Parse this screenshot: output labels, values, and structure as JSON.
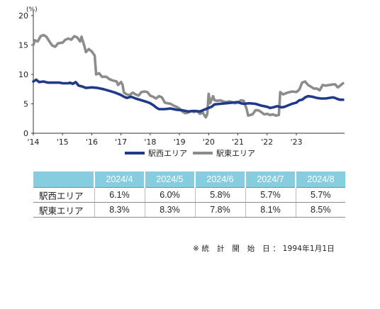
{
  "chart_data": {
    "type": "line",
    "y_unit": "(%)",
    "ylim": [
      0,
      20
    ],
    "y_ticks": [
      "0",
      "5",
      "10",
      "15",
      "20"
    ],
    "x_ticks": [
      "'14",
      "'15",
      "'16",
      "'17",
      "'18",
      "'19",
      "'20",
      "'21",
      "'22",
      "'23"
    ],
    "x_range": [
      2014.0,
      2024.65
    ],
    "grid": false,
    "legend_position": "bottom",
    "series": [
      {
        "name": "駅西エリア",
        "color": "#1f3a8a",
        "points": [
          [
            2014.0,
            8.8
          ],
          [
            2014.1,
            9.1
          ],
          [
            2014.2,
            8.7
          ],
          [
            2014.35,
            8.8
          ],
          [
            2014.5,
            8.6
          ],
          [
            2014.7,
            8.6
          ],
          [
            2014.9,
            8.6
          ],
          [
            2015.0,
            8.5
          ],
          [
            2015.2,
            8.5
          ],
          [
            2015.25,
            8.6
          ],
          [
            2015.35,
            8.4
          ],
          [
            2015.45,
            8.7
          ],
          [
            2015.55,
            8.1
          ],
          [
            2015.7,
            7.9
          ],
          [
            2015.8,
            7.7
          ],
          [
            2016.0,
            7.8
          ],
          [
            2016.2,
            7.7
          ],
          [
            2016.4,
            7.5
          ],
          [
            2016.6,
            7.2
          ],
          [
            2016.8,
            6.9
          ],
          [
            2017.0,
            6.5
          ],
          [
            2017.1,
            6.2
          ],
          [
            2017.2,
            6.0
          ],
          [
            2017.35,
            6.2
          ],
          [
            2017.5,
            5.9
          ],
          [
            2017.7,
            5.6
          ],
          [
            2017.9,
            5.3
          ],
          [
            2018.0,
            5.1
          ],
          [
            2018.1,
            4.8
          ],
          [
            2018.2,
            4.4
          ],
          [
            2018.3,
            4.1
          ],
          [
            2018.5,
            4.1
          ],
          [
            2018.7,
            4.2
          ],
          [
            2018.9,
            4.0
          ],
          [
            2019.1,
            3.9
          ],
          [
            2019.3,
            3.7
          ],
          [
            2019.5,
            3.8
          ],
          [
            2019.7,
            3.7
          ],
          [
            2019.85,
            4.0
          ],
          [
            2019.95,
            4.2
          ],
          [
            2020.1,
            4.5
          ],
          [
            2020.2,
            4.9
          ],
          [
            2020.4,
            5.0
          ],
          [
            2020.6,
            5.1
          ],
          [
            2020.8,
            5.2
          ],
          [
            2021.0,
            5.3
          ],
          [
            2021.1,
            5.1
          ],
          [
            2021.2,
            5.0
          ],
          [
            2021.4,
            5.1
          ],
          [
            2021.6,
            5.0
          ],
          [
            2021.8,
            4.7
          ],
          [
            2021.9,
            4.6
          ],
          [
            2022.0,
            4.5
          ],
          [
            2022.1,
            4.3
          ],
          [
            2022.2,
            4.4
          ],
          [
            2022.35,
            4.6
          ],
          [
            2022.5,
            4.4
          ],
          [
            2022.6,
            4.5
          ],
          [
            2022.7,
            4.7
          ],
          [
            2022.85,
            5.0
          ],
          [
            2023.0,
            5.2
          ],
          [
            2023.1,
            5.6
          ],
          [
            2023.2,
            5.7
          ],
          [
            2023.3,
            6.1
          ],
          [
            2023.4,
            6.3
          ],
          [
            2023.55,
            6.2
          ],
          [
            2023.7,
            6.0
          ],
          [
            2023.85,
            5.9
          ],
          [
            2024.0,
            5.9
          ],
          [
            2024.25,
            6.1
          ],
          [
            2024.33,
            6.0
          ],
          [
            2024.42,
            5.8
          ],
          [
            2024.5,
            5.7
          ],
          [
            2024.6,
            5.7
          ]
        ]
      },
      {
        "name": "駅東エリア",
        "color": "#8c8c8c",
        "points": [
          [
            2014.0,
            15.0
          ],
          [
            2014.05,
            15.8
          ],
          [
            2014.15,
            15.6
          ],
          [
            2014.25,
            16.5
          ],
          [
            2014.35,
            16.7
          ],
          [
            2014.45,
            16.4
          ],
          [
            2014.55,
            15.6
          ],
          [
            2014.65,
            14.9
          ],
          [
            2014.75,
            14.7
          ],
          [
            2014.85,
            15.3
          ],
          [
            2015.0,
            15.4
          ],
          [
            2015.1,
            15.9
          ],
          [
            2015.2,
            16.1
          ],
          [
            2015.3,
            15.9
          ],
          [
            2015.4,
            16.5
          ],
          [
            2015.5,
            16.3
          ],
          [
            2015.6,
            15.6
          ],
          [
            2015.65,
            16.4
          ],
          [
            2015.75,
            14.8
          ],
          [
            2015.8,
            13.8
          ],
          [
            2015.9,
            14.3
          ],
          [
            2016.0,
            13.9
          ],
          [
            2016.1,
            13.2
          ],
          [
            2016.15,
            10.0
          ],
          [
            2016.25,
            10.2
          ],
          [
            2016.35,
            9.6
          ],
          [
            2016.5,
            9.6
          ],
          [
            2016.6,
            9.2
          ],
          [
            2016.7,
            9.0
          ],
          [
            2016.85,
            8.8
          ],
          [
            2016.9,
            8.2
          ],
          [
            2017.0,
            8.7
          ],
          [
            2017.05,
            8.3
          ],
          [
            2017.1,
            6.9
          ],
          [
            2017.2,
            6.6
          ],
          [
            2017.3,
            6.5
          ],
          [
            2017.4,
            6.9
          ],
          [
            2017.5,
            6.6
          ],
          [
            2017.6,
            6.4
          ],
          [
            2017.7,
            7.0
          ],
          [
            2017.8,
            7.1
          ],
          [
            2017.9,
            7.0
          ],
          [
            2018.0,
            6.4
          ],
          [
            2018.1,
            6.2
          ],
          [
            2018.2,
            5.9
          ],
          [
            2018.3,
            6.3
          ],
          [
            2018.4,
            6.1
          ],
          [
            2018.5,
            5.2
          ],
          [
            2018.6,
            5.1
          ],
          [
            2018.7,
            5.0
          ],
          [
            2018.8,
            4.7
          ],
          [
            2018.9,
            4.5
          ],
          [
            2019.0,
            4.2
          ],
          [
            2019.1,
            3.7
          ],
          [
            2019.2,
            3.4
          ],
          [
            2019.3,
            3.5
          ],
          [
            2019.4,
            3.8
          ],
          [
            2019.5,
            3.6
          ],
          [
            2019.6,
            3.8
          ],
          [
            2019.7,
            3.3
          ],
          [
            2019.8,
            3.5
          ],
          [
            2019.9,
            2.7
          ],
          [
            2019.95,
            3.2
          ],
          [
            2020.0,
            6.7
          ],
          [
            2020.05,
            5.1
          ],
          [
            2020.15,
            6.3
          ],
          [
            2020.2,
            5.6
          ],
          [
            2020.3,
            5.5
          ],
          [
            2020.4,
            5.6
          ],
          [
            2020.5,
            5.4
          ],
          [
            2020.6,
            5.3
          ],
          [
            2020.7,
            5.4
          ],
          [
            2020.8,
            5.3
          ],
          [
            2020.9,
            5.1
          ],
          [
            2021.0,
            5.2
          ],
          [
            2021.1,
            5.6
          ],
          [
            2021.2,
            5.5
          ],
          [
            2021.3,
            4.1
          ],
          [
            2021.35,
            3.0
          ],
          [
            2021.5,
            3.2
          ],
          [
            2021.6,
            3.9
          ],
          [
            2021.7,
            3.9
          ],
          [
            2021.8,
            3.6
          ],
          [
            2021.9,
            3.2
          ],
          [
            2022.0,
            3.3
          ],
          [
            2022.1,
            3.1
          ],
          [
            2022.2,
            3.2
          ],
          [
            2022.3,
            3.0
          ],
          [
            2022.4,
            3.1
          ],
          [
            2022.45,
            7.0
          ],
          [
            2022.55,
            6.6
          ],
          [
            2022.7,
            6.9
          ],
          [
            2022.85,
            7.1
          ],
          [
            2023.0,
            7.0
          ],
          [
            2023.1,
            7.4
          ],
          [
            2023.2,
            8.6
          ],
          [
            2023.3,
            8.8
          ],
          [
            2023.4,
            8.2
          ],
          [
            2023.5,
            7.9
          ],
          [
            2023.6,
            7.6
          ],
          [
            2023.7,
            7.6
          ],
          [
            2023.8,
            7.3
          ],
          [
            2023.9,
            8.2
          ],
          [
            2024.0,
            8.1
          ],
          [
            2024.25,
            8.3
          ],
          [
            2024.33,
            8.3
          ],
          [
            2024.42,
            7.8
          ],
          [
            2024.5,
            8.1
          ],
          [
            2024.6,
            8.5
          ]
        ]
      }
    ]
  },
  "table": {
    "headers": [
      "2024/4",
      "2024/5",
      "2024/6",
      "2024/7",
      "2024/8"
    ],
    "rows": [
      {
        "label": "駅西エリア",
        "values": [
          "6.1%",
          "6.0%",
          "5.8%",
          "5.7%",
          "5.7%"
        ]
      },
      {
        "label": "駅東エリア",
        "values": [
          "8.3%",
          "8.3%",
          "7.8%",
          "8.1%",
          "8.5%"
        ]
      }
    ]
  },
  "note": "※ 統　計　開　始　日 ： 1994年1月1日"
}
